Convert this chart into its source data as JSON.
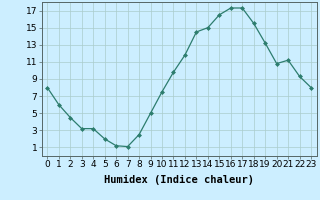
{
  "x": [
    0,
    1,
    2,
    3,
    4,
    5,
    6,
    7,
    8,
    9,
    10,
    11,
    12,
    13,
    14,
    15,
    16,
    17,
    18,
    19,
    20,
    21,
    22,
    23
  ],
  "y": [
    8,
    6,
    4.5,
    3.2,
    3.2,
    2,
    1.2,
    1.1,
    2.5,
    5,
    7.5,
    9.8,
    11.8,
    14.5,
    15,
    16.5,
    17.3,
    17.3,
    15.5,
    13.2,
    10.8,
    11.2,
    9.3,
    8
  ],
  "line_color": "#2d7d6e",
  "marker": "D",
  "marker_size": 2.0,
  "bg_color": "#cceeff",
  "grid_color": "#aacccc",
  "xlabel": "Humidex (Indice chaleur)",
  "xlim": [
    -0.5,
    23.5
  ],
  "ylim": [
    0,
    18
  ],
  "yticks": [
    1,
    3,
    5,
    7,
    9,
    11,
    13,
    15,
    17
  ],
  "xticks": [
    0,
    1,
    2,
    3,
    4,
    5,
    6,
    7,
    8,
    9,
    10,
    11,
    12,
    13,
    14,
    15,
    16,
    17,
    18,
    19,
    20,
    21,
    22,
    23
  ],
  "tick_font_size": 6.5,
  "xlabel_font_size": 7.5
}
